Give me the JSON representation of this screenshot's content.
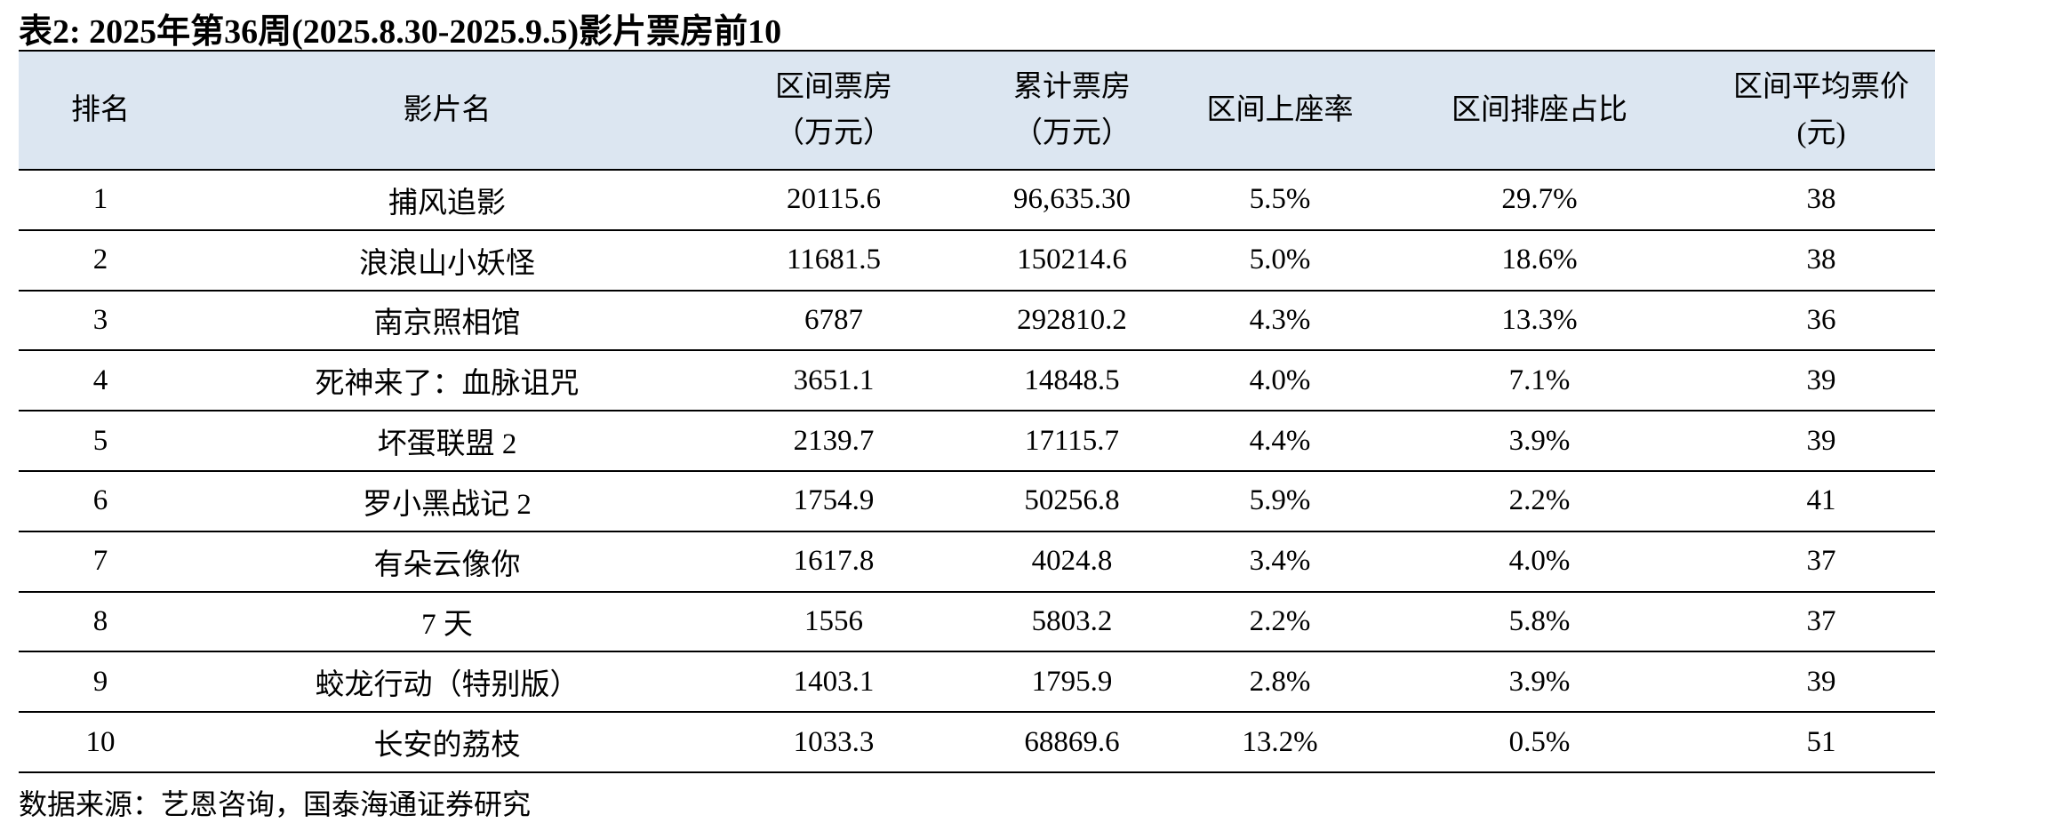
{
  "title": "表2: 2025年第36周(2025.8.30-2025.9.5)影片票房前10",
  "table": {
    "header": [
      [
        "排名"
      ],
      [
        "影片名"
      ],
      [
        "区间票房",
        "（万元）"
      ],
      [
        "累计票房",
        "（万元）"
      ],
      [
        "区间上座率"
      ],
      [
        "区间排座占比"
      ],
      [
        "区间平均票价",
        "(元)"
      ]
    ],
    "rows": [
      [
        "1",
        "捕风追影",
        "20115.6",
        "96,635.30",
        "5.5%",
        "29.7%",
        "38"
      ],
      [
        "2",
        "浪浪山小妖怪",
        "11681.5",
        "150214.6",
        "5.0%",
        "18.6%",
        "38"
      ],
      [
        "3",
        "南京照相馆",
        "6787",
        "292810.2",
        "4.3%",
        "13.3%",
        "36"
      ],
      [
        "4",
        "死神来了：血脉诅咒",
        "3651.1",
        "14848.5",
        "4.0%",
        "7.1%",
        "39"
      ],
      [
        "5",
        "坏蛋联盟 2",
        "2139.7",
        "17115.7",
        "4.4%",
        "3.9%",
        "39"
      ],
      [
        "6",
        "罗小黑战记 2",
        "1754.9",
        "50256.8",
        "5.9%",
        "2.2%",
        "41"
      ],
      [
        "7",
        "有朵云像你",
        "1617.8",
        "4024.8",
        "3.4%",
        "4.0%",
        "37"
      ],
      [
        "8",
        "7 天",
        "1556",
        "5803.2",
        "2.2%",
        "5.8%",
        "37"
      ],
      [
        "9",
        "蛟龙行动（特别版）",
        "1403.1",
        "1795.9",
        "2.8%",
        "3.9%",
        "39"
      ],
      [
        "10",
        "长安的荔枝",
        "1033.3",
        "68869.6",
        "13.2%",
        "0.5%",
        "51"
      ]
    ]
  },
  "source": "数据来源：艺恩咨询，国泰海通证券研究"
}
